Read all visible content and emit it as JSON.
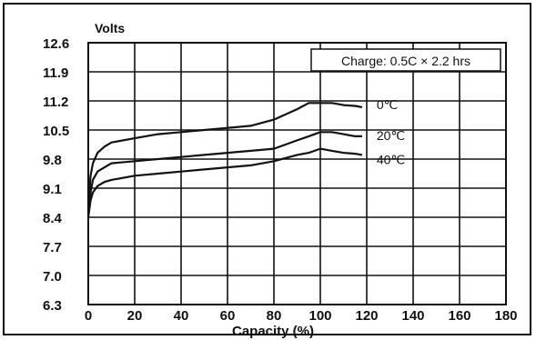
{
  "chart_data": {
    "type": "line",
    "title": "",
    "ylabel": "Volts",
    "xlabel": "Capacity (%)",
    "annotation": "Charge: 0.5C × 2.2 hrs",
    "x_ticks": [
      "0",
      "20",
      "40",
      "60",
      "80",
      "100",
      "120",
      "140",
      "160",
      "180"
    ],
    "y_ticks": [
      "12.6",
      "11.9",
      "11.2",
      "10.5",
      "9.8",
      "9.1",
      "8.4",
      "7.7",
      "7.0",
      "6.3"
    ],
    "xlim": [
      0,
      180
    ],
    "ylim": [
      6.3,
      12.6
    ],
    "grid": true,
    "series": [
      {
        "name": "0℃",
        "x": [
          0,
          1,
          2,
          4,
          7,
          10,
          20,
          30,
          40,
          50,
          60,
          70,
          80,
          90,
          95,
          100,
          105,
          110,
          115,
          118
        ],
        "y": [
          8.6,
          9.4,
          9.7,
          9.95,
          10.1,
          10.2,
          10.3,
          10.4,
          10.45,
          10.5,
          10.55,
          10.6,
          10.75,
          11.0,
          11.15,
          11.15,
          11.15,
          11.1,
          11.08,
          11.05
        ]
      },
      {
        "name": "20℃",
        "x": [
          0,
          1,
          2,
          4,
          7,
          10,
          20,
          30,
          40,
          50,
          60,
          70,
          80,
          90,
          95,
          100,
          105,
          110,
          115,
          118
        ],
        "y": [
          8.5,
          9.0,
          9.3,
          9.5,
          9.6,
          9.7,
          9.75,
          9.8,
          9.85,
          9.9,
          9.95,
          10.0,
          10.05,
          10.25,
          10.35,
          10.45,
          10.45,
          10.4,
          10.35,
          10.35
        ]
      },
      {
        "name": "40℃",
        "x": [
          0,
          1,
          2,
          4,
          7,
          10,
          20,
          30,
          40,
          50,
          60,
          70,
          80,
          90,
          95,
          100,
          105,
          110,
          115,
          118
        ],
        "y": [
          8.4,
          8.8,
          9.0,
          9.15,
          9.25,
          9.3,
          9.4,
          9.45,
          9.5,
          9.55,
          9.6,
          9.65,
          9.75,
          9.9,
          9.95,
          10.05,
          10.0,
          9.95,
          9.93,
          9.9
        ]
      }
    ]
  }
}
